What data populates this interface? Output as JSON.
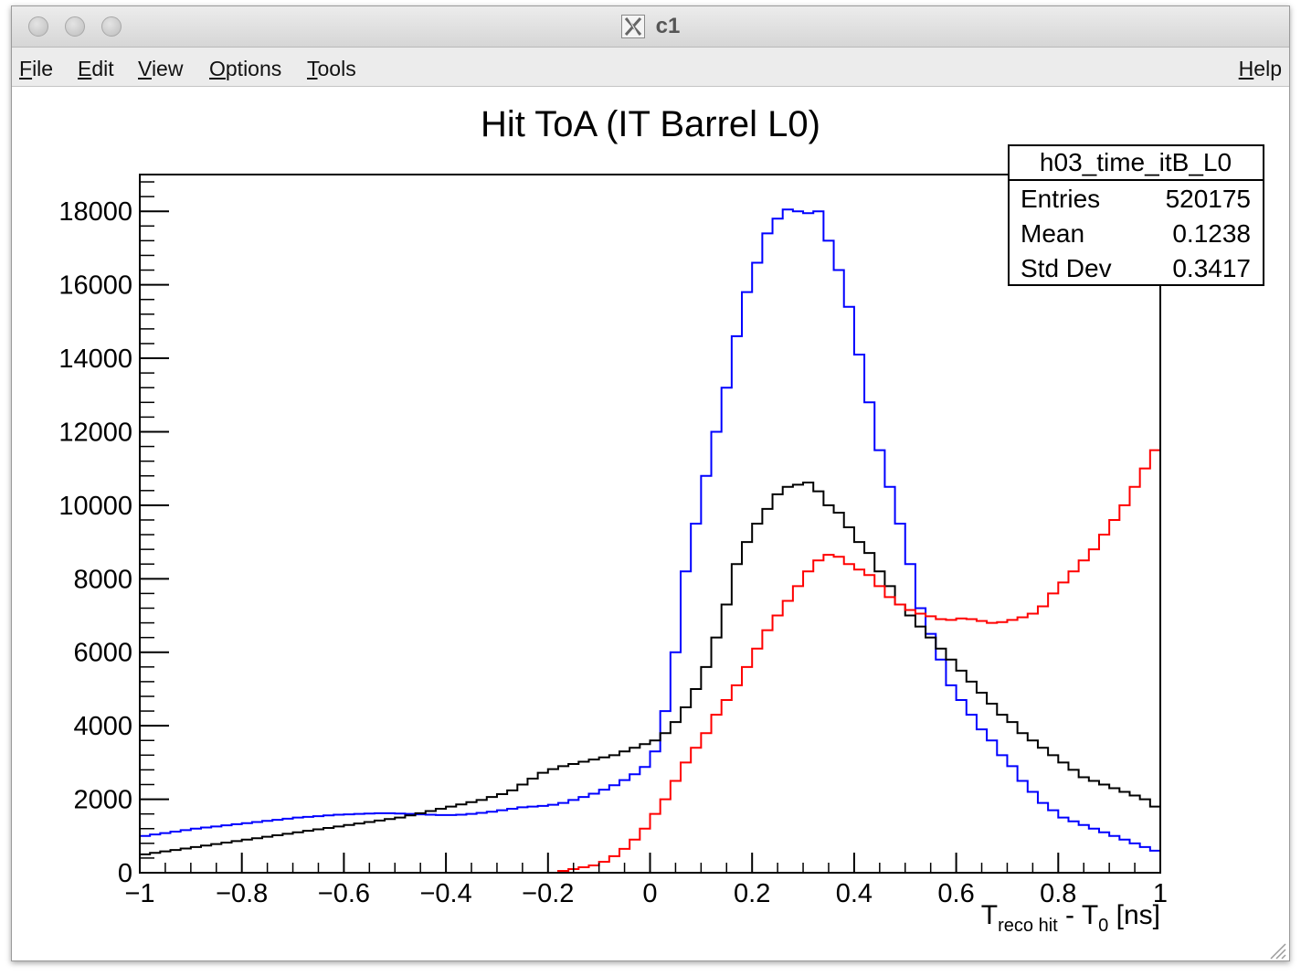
{
  "window": {
    "title": "c1",
    "menu": [
      {
        "label": "File",
        "key": "F",
        "rest": "ile"
      },
      {
        "label": "Edit",
        "key": "E",
        "rest": "dit"
      },
      {
        "label": "View",
        "key": "V",
        "rest": "iew"
      },
      {
        "label": "Options",
        "key": "O",
        "rest": "ptions"
      },
      {
        "label": "Tools",
        "key": "T",
        "rest": "ools"
      }
    ],
    "help": {
      "label": "Help",
      "key": "H",
      "rest": "elp"
    }
  },
  "stats": {
    "name": "h03_time_itB_L0",
    "rows": [
      {
        "label": "Entries",
        "value": "520175"
      },
      {
        "label": "Mean",
        "value": "0.1238"
      },
      {
        "label": "Std Dev",
        "value": "0.3417"
      }
    ]
  },
  "chart_data": {
    "type": "line",
    "title": "Hit ToA (IT Barrel L0)",
    "xlabel": {
      "main": "T",
      "sub1": "reco hit",
      "middle": " - T",
      "sub2": "0",
      "unit": " [ns]"
    },
    "ylabel": "",
    "xlim": [
      -1,
      1
    ],
    "ylim": [
      0,
      19000
    ],
    "xticks": [
      -1,
      -0.8,
      -0.6,
      -0.4,
      -0.2,
      0,
      0.2,
      0.4,
      0.6,
      0.8,
      1
    ],
    "xtick_labels": [
      "−1",
      "−0.8",
      "−0.6",
      "−0.4",
      "−0.2",
      "0",
      "0.2",
      "0.4",
      "0.6",
      "0.8",
      "1"
    ],
    "yticks": [
      0,
      2000,
      4000,
      6000,
      8000,
      10000,
      12000,
      14000,
      16000,
      18000
    ],
    "ytick_labels": [
      "0",
      "2000",
      "4000",
      "6000",
      "8000",
      "10000",
      "12000",
      "14000",
      "16000",
      "18000"
    ],
    "grid": false,
    "histogram": true,
    "bin_edges_range": [
      -1,
      1
    ],
    "n_bins": 100,
    "series": [
      {
        "color": "#0000ff",
        "values": [
          1000,
          1040,
          1080,
          1120,
          1160,
          1200,
          1230,
          1260,
          1290,
          1320,
          1350,
          1380,
          1410,
          1440,
          1470,
          1500,
          1520,
          1540,
          1560,
          1580,
          1590,
          1600,
          1610,
          1620,
          1620,
          1610,
          1600,
          1590,
          1580,
          1570,
          1570,
          1580,
          1600,
          1630,
          1660,
          1700,
          1740,
          1780,
          1800,
          1820,
          1850,
          1900,
          1980,
          2060,
          2150,
          2260,
          2380,
          2520,
          2680,
          2880,
          3300,
          4400,
          6000,
          8200,
          9500,
          10800,
          12000,
          13200,
          14600,
          15800,
          16600,
          17400,
          17800,
          18050,
          18000,
          17950,
          18000,
          17200,
          16400,
          15400,
          14100,
          12800,
          11500,
          10500,
          9500,
          8400,
          7200,
          6500,
          5800,
          5100,
          4700,
          4300,
          3900,
          3600,
          3200,
          2900,
          2500,
          2200,
          1900,
          1700,
          1500,
          1400,
          1300,
          1200,
          1100,
          1000,
          900,
          800,
          700,
          600
        ]
      },
      {
        "color": "#000000",
        "values": [
          500,
          540,
          580,
          620,
          660,
          700,
          740,
          780,
          820,
          860,
          900,
          940,
          980,
          1020,
          1060,
          1100,
          1140,
          1180,
          1220,
          1260,
          1300,
          1340,
          1380,
          1420,
          1460,
          1500,
          1560,
          1620,
          1680,
          1740,
          1800,
          1860,
          1920,
          1980,
          2060,
          2140,
          2240,
          2400,
          2560,
          2720,
          2820,
          2900,
          2960,
          3020,
          3080,
          3140,
          3200,
          3300,
          3400,
          3500,
          3600,
          3800,
          4100,
          4500,
          5000,
          5600,
          6400,
          7300,
          8400,
          9000,
          9500,
          9900,
          10300,
          10500,
          10560,
          10620,
          10380,
          10000,
          9800,
          9400,
          9000,
          8700,
          8200,
          7800,
          7300,
          7000,
          6700,
          6400,
          6100,
          5800,
          5500,
          5200,
          4900,
          4600,
          4300,
          4100,
          3800,
          3600,
          3400,
          3200,
          3000,
          2800,
          2600,
          2500,
          2400,
          2300,
          2200,
          2100,
          2000,
          1800
        ]
      },
      {
        "color": "#ff0000",
        "values": [
          0,
          0,
          0,
          0,
          0,
          0,
          0,
          0,
          0,
          0,
          0,
          0,
          0,
          0,
          0,
          0,
          0,
          0,
          0,
          0,
          0,
          0,
          0,
          0,
          0,
          0,
          0,
          0,
          0,
          0,
          0,
          0,
          0,
          0,
          0,
          0,
          0,
          0,
          0,
          0,
          0,
          50,
          100,
          150,
          200,
          300,
          450,
          650,
          900,
          1200,
          1600,
          2000,
          2500,
          3000,
          3400,
          3800,
          4300,
          4700,
          5100,
          5600,
          6100,
          6600,
          7000,
          7400,
          7800,
          8200,
          8500,
          8650,
          8600,
          8400,
          8250,
          8100,
          7800,
          7500,
          7300,
          7150,
          7050,
          6980,
          6900,
          6880,
          6920,
          6900,
          6850,
          6800,
          6820,
          6880,
          6950,
          7050,
          7250,
          7600,
          7900,
          8200,
          8500,
          8800,
          9200,
          9600,
          10000,
          10500,
          11000,
          11500
        ]
      }
    ]
  }
}
